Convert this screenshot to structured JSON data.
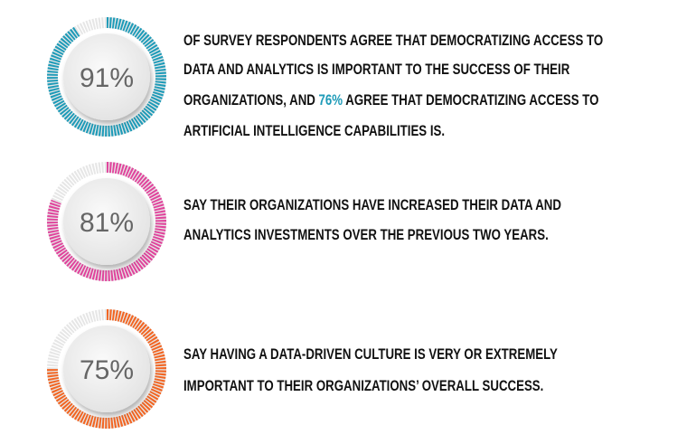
{
  "items": [
    {
      "value": 91,
      "label": "91%",
      "color": "#1e9bb8",
      "lines": [
        [
          {
            "text": "OF SURVEY RESPONDENTS AGREE THAT DEMOCRATIZING ACCESS TO"
          }
        ],
        [
          {
            "text": "DATA AND ANALYTICS IS IMPORTANT TO THE SUCCESS OF THEIR"
          }
        ],
        [
          {
            "text": "ORGANIZATIONS, AND "
          },
          {
            "text": "76%",
            "color": "#1e9bb8"
          },
          {
            "text": " AGREE THAT DEMOCRATIZING ACCESS TO"
          }
        ],
        [
          {
            "text": "ARTIFICIAL INTELLIGENCE CAPABILITIES IS."
          }
        ]
      ]
    },
    {
      "value": 81,
      "label": "81%",
      "color": "#e0449c",
      "lines": [
        [
          {
            "text": "SAY THEIR ORGANIZATIONS HAVE INCREASED THEIR DATA AND"
          }
        ],
        [
          {
            "text": "ANALYTICS INVESTMENTS OVER THE PREVIOUS TWO YEARS."
          }
        ]
      ]
    },
    {
      "value": 75,
      "label": "75%",
      "color": "#f26522",
      "lines": [
        [
          {
            "text": "SAY HAVING A DATA-DRIVEN CULTURE IS VERY OR EXTREMELY"
          }
        ],
        [
          {
            "text": "IMPORTANT TO THEIR ORGANIZATIONS’ OVERALL SUCCESS."
          }
        ]
      ]
    }
  ]
}
